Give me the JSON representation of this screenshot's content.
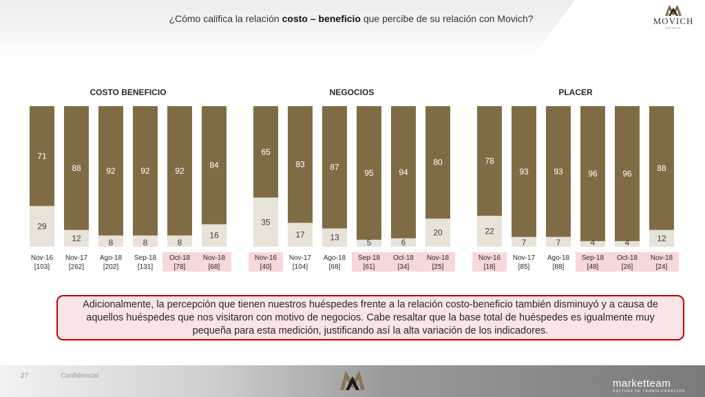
{
  "header": {
    "title_pre": "¿Cómo califica la relación ",
    "title_bold": "costo – beneficio",
    "title_post": " que percibe de su relación con Movich?",
    "logo_text": "MOVICH",
    "logo_sub": "HOTELS"
  },
  "colors": {
    "top_segment": "#7f6c45",
    "bottom_segment": "#e8e2d8",
    "top_label": "#ffffff",
    "bottom_label": "#404040",
    "highlight_label_bg": "#f8d7d9",
    "callout_border": "#c00000",
    "callout_bg": "#fbe4e5"
  },
  "chart_data": [
    {
      "type": "bar",
      "stacked": "100%",
      "title": "COSTO BENEFICIO",
      "categories": [
        "Nov-16",
        "Nov-17",
        "Ago-18",
        "Sep-18",
        "Oct-18",
        "Nov-18"
      ],
      "bases": [
        "[103]",
        "[262]",
        "[202]",
        "[131]",
        "[78]",
        "[68]"
      ],
      "highlighted": [
        false,
        false,
        false,
        false,
        true,
        true
      ],
      "series": [
        {
          "values": [
            29,
            12,
            8,
            8,
            8,
            16
          ]
        },
        {
          "values": [
            71,
            88,
            92,
            92,
            92,
            84
          ]
        }
      ],
      "ylim": [
        0,
        100
      ]
    },
    {
      "type": "bar",
      "stacked": "100%",
      "title": "NEGOCIOS",
      "categories": [
        "Nov-16",
        "Nov-17",
        "Ago-18",
        "Sep-18",
        "Oct-18",
        "Nov-18"
      ],
      "bases": [
        "[40]",
        "[104]",
        "[68]",
        "[61]",
        "[34]",
        "[25]"
      ],
      "highlighted": [
        true,
        false,
        false,
        true,
        true,
        true
      ],
      "series": [
        {
          "values": [
            35,
            17,
            13,
            5,
            6,
            20
          ]
        },
        {
          "values": [
            65,
            83,
            87,
            95,
            94,
            80
          ]
        }
      ],
      "ylim": [
        0,
        100
      ]
    },
    {
      "type": "bar",
      "stacked": "100%",
      "title": "PLACER",
      "categories": [
        "Nov-16",
        "Nov-17",
        "Ago-18",
        "Sep-18",
        "Oct-18",
        "Nov-18"
      ],
      "bases": [
        "[18]",
        "[85]",
        "[88]",
        "[48]",
        "[26]",
        "[24]"
      ],
      "highlighted": [
        true,
        false,
        false,
        true,
        true,
        true
      ],
      "series": [
        {
          "values": [
            22,
            7,
            7,
            4,
            4,
            12
          ]
        },
        {
          "values": [
            78,
            93,
            93,
            96,
            96,
            88
          ]
        }
      ],
      "ylim": [
        0,
        100
      ]
    }
  ],
  "callout": {
    "text": "Adicionalmente, la percepción que tienen nuestros huéspedes frente a la relación costo-beneficio también disminuyó y a causa de aquellos huéspedes que nos visitaron con motivo de negocios. Cabe resaltar que la base total de huéspedes es igualmente muy pequeña para esta medición, justificando así la alta variación de los indicadores."
  },
  "footer": {
    "page_number": "27",
    "confidential": "Confidencial",
    "brand": "marketteam",
    "brand_sub": "CULTURA DE TRANSFORMACIÓN"
  }
}
